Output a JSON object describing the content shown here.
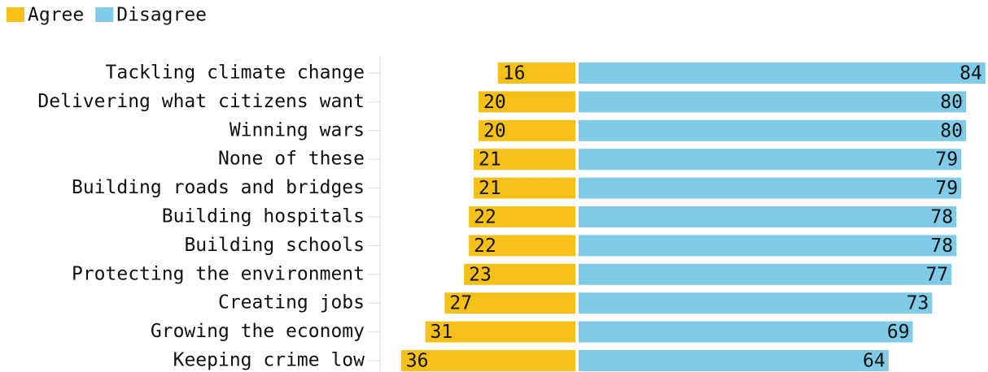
{
  "chart_data": {
    "type": "diverging-bar",
    "categories": [
      "Tackling climate change",
      "Delivering what citizens want",
      "Winning wars",
      "None of these",
      "Building roads and bridges",
      "Building hospitals",
      "Building schools",
      "Protecting the environment",
      "Creating jobs",
      "Growing the economy",
      "Keeping crime low"
    ],
    "series": [
      {
        "name": "Agree",
        "color": "#f5c118",
        "values": [
          16,
          20,
          20,
          21,
          21,
          22,
          22,
          23,
          27,
          31,
          36
        ]
      },
      {
        "name": "Disagree",
        "color": "#7fcbe8",
        "values": [
          84,
          80,
          80,
          79,
          79,
          78,
          78,
          77,
          73,
          69,
          64
        ]
      }
    ]
  }
}
